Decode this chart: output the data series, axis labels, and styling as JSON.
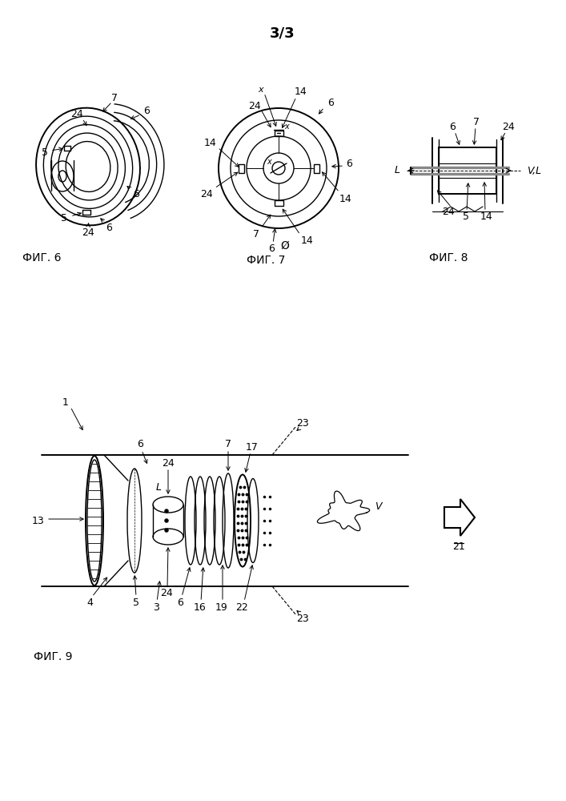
{
  "title": "3/3",
  "title_fontsize": 13,
  "fig_label_fontsize": 10,
  "annotation_fontsize": 9,
  "background_color": "#ffffff",
  "line_color": "#000000",
  "fig6_label": "ФИГ. 6",
  "fig7_label": "ФИГ. 7",
  "fig8_label": "ФИГ. 8",
  "fig9_label": "ФИГ. 9"
}
